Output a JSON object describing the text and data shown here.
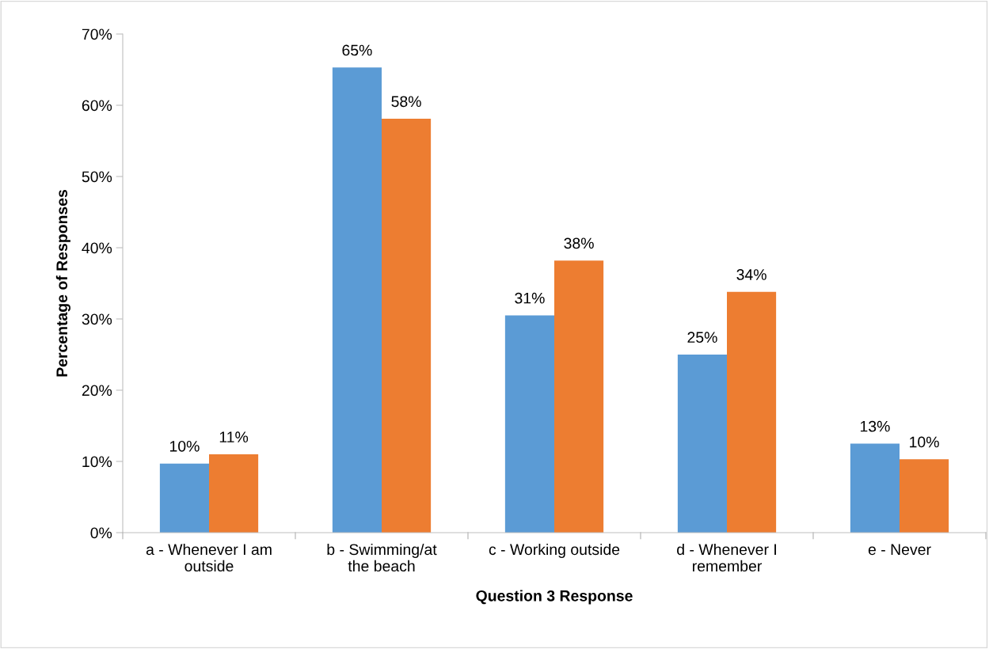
{
  "chart_data": {
    "type": "bar",
    "xlabel": "Question 3 Response",
    "ylabel": "Percentage of Responses",
    "categories": [
      "a - Whenever I am\noutside",
      "b - Swimming/at\nthe beach",
      "c - Working outside",
      "d - Whenever I\nremember",
      "e - Never"
    ],
    "series": [
      {
        "color": "#5b9bd5",
        "values": [
          9.7,
          65.3,
          30.5,
          25.0,
          12.5
        ],
        "value_labels": [
          "10%",
          "65%",
          "31%",
          "25%",
          "13%"
        ]
      },
      {
        "color": "#ed7d31",
        "values": [
          11.0,
          58.1,
          38.2,
          33.8,
          10.3
        ],
        "value_labels": [
          "11%",
          "58%",
          "38%",
          "34%",
          "10%"
        ]
      }
    ],
    "ylim": [
      0,
      70
    ],
    "yticks": [
      {
        "value": 0,
        "label": "0%"
      },
      {
        "value": 10,
        "label": "10%"
      },
      {
        "value": 20,
        "label": "20%"
      },
      {
        "value": 30,
        "label": "30%"
      },
      {
        "value": 40,
        "label": "40%"
      },
      {
        "value": 50,
        "label": "50%"
      },
      {
        "value": 60,
        "label": "60%"
      },
      {
        "value": 70,
        "label": "70%"
      }
    ],
    "grid": false,
    "legend": false
  }
}
